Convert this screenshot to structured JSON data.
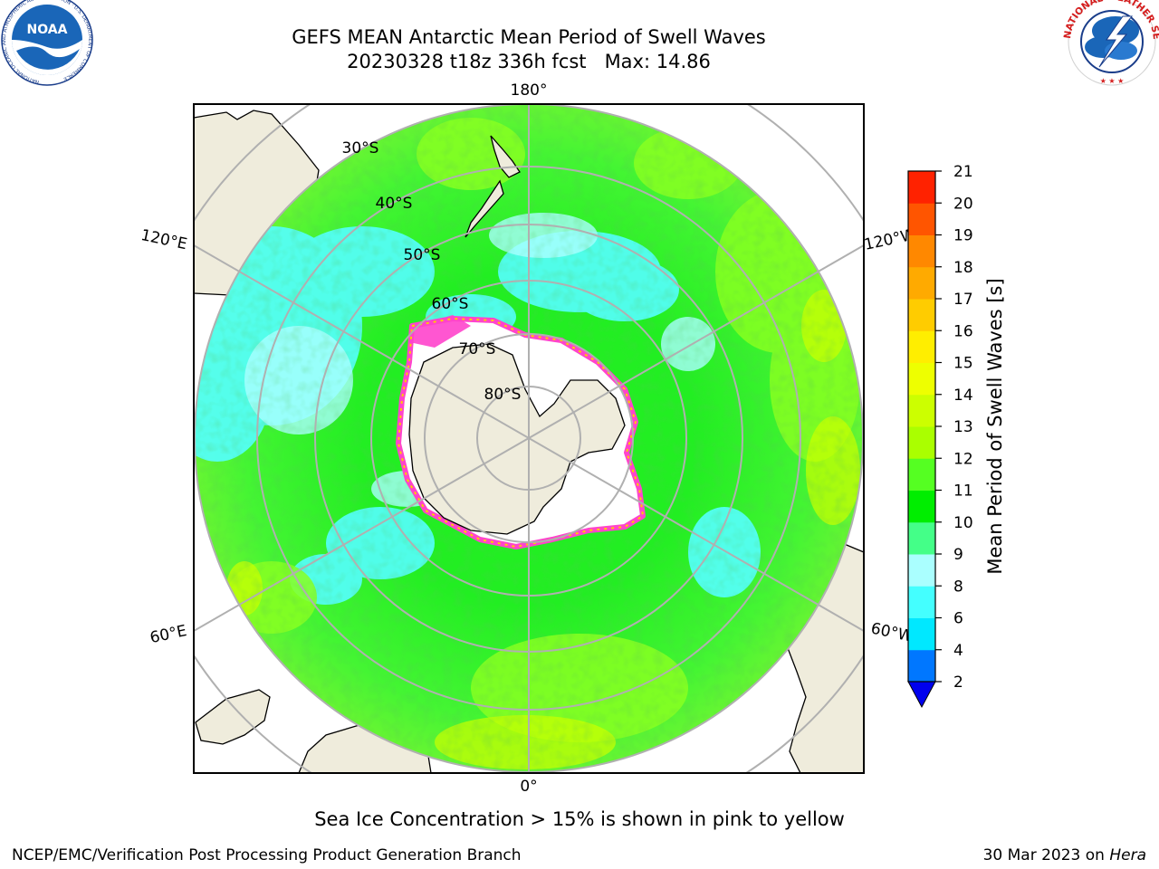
{
  "title": {
    "line1": "GEFS MEAN Antarctic Mean Period of Swell Waves",
    "line2": "20230328 t18z 336h fcst   Max: 14.86"
  },
  "logos": {
    "left": {
      "name": "NOAA",
      "text": "NOAA",
      "ring_text": "NATIONAL OCEANIC AND ATMOSPHERIC ADMINISTRATION · U.S. DEPARTMENT OF COMMERCE"
    },
    "right": {
      "name": "National Weather Service",
      "ring_text": "NATIONAL WEATHER SERVICE"
    }
  },
  "map": {
    "projection": "south-polar-stereographic",
    "longitude_labels": {
      "top": "180°",
      "bottom": "0°",
      "upper_left": "120°E",
      "lower_left": "60°E",
      "upper_right": "120°W",
      "lower_right": "60°W"
    },
    "latitude_labels": [
      "30°S",
      "40°S",
      "50°S",
      "60°S",
      "70°S",
      "80°S"
    ],
    "colors": {
      "land": "#efecdc",
      "ice": "#ffffff",
      "ice_edge": "#ff44cc",
      "grid": "#b0b0b0"
    }
  },
  "colorbar": {
    "label": "Mean Period of Swell Waves [s]",
    "ticks": [
      "2",
      "4",
      "6",
      "8",
      "9",
      "10",
      "11",
      "12",
      "13",
      "14",
      "15",
      "16",
      "17",
      "18",
      "19",
      "20",
      "21"
    ],
    "colors": [
      "#0077ff",
      "#00e8ff",
      "#44ffff",
      "#aaffff",
      "#44ff88",
      "#00ee00",
      "#55ff22",
      "#aaff00",
      "#ccff00",
      "#eeff00",
      "#ffee00",
      "#ffcc00",
      "#ffaa00",
      "#ff8800",
      "#ff5500",
      "#ff2200"
    ],
    "under_color": "#0000ee"
  },
  "footer": {
    "note": "Sea Ice Concentration > 15% is shown in pink to yellow",
    "left": "NCEP/EMC/Verification Post Processing Product Generation Branch",
    "right_prefix": "30 Mar 2023 on ",
    "right_host": "Hera"
  }
}
